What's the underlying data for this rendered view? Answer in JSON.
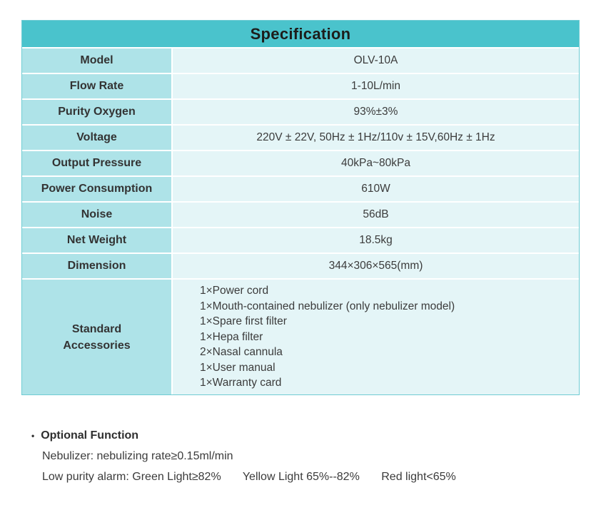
{
  "colors": {
    "header_bg": "#4ac3cc",
    "header_text": "#1d1d1b",
    "label_bg": "#aee3e8",
    "value_bg": "#e4f5f7",
    "border": "#6fccd3",
    "text": "#3b3b3b"
  },
  "table": {
    "title": "Specification",
    "rows": [
      {
        "label": "Model",
        "value": "OLV-10A"
      },
      {
        "label": "Flow Rate",
        "value": "1-10L/min"
      },
      {
        "label": "Purity Oxygen",
        "value": "93%±3%"
      },
      {
        "label": "Voltage",
        "value": "220V ± 22V, 50Hz ± 1Hz/110v ± 15V,60Hz ± 1Hz"
      },
      {
        "label": "Output Pressure",
        "value": "40kPa~80kPa"
      },
      {
        "label": "Power Consumption",
        "value": "610W"
      },
      {
        "label": "Noise",
        "value": "56dB"
      },
      {
        "label": "Net Weight",
        "value": "18.5kg"
      },
      {
        "label": "Dimension",
        "value": "344×306×565(mm)"
      }
    ],
    "accessories_label": "Standard Accessories",
    "accessories": [
      "1×Power cord",
      "1×Mouth-contained nebulizer (only nebulizer model)",
      "1×Spare first filter",
      "1×Hepa filter",
      "2×Nasal cannula",
      "1×User manual",
      "1×Warranty card"
    ]
  },
  "notes": {
    "bullet": "•",
    "heading": "Optional Function",
    "line1": "Nebulizer: nebulizing rate≥0.15ml/min",
    "line2": [
      "Low purity alarm: Green Light≥82%",
      "Yellow Light 65%--82%",
      "Red light<65%"
    ]
  }
}
